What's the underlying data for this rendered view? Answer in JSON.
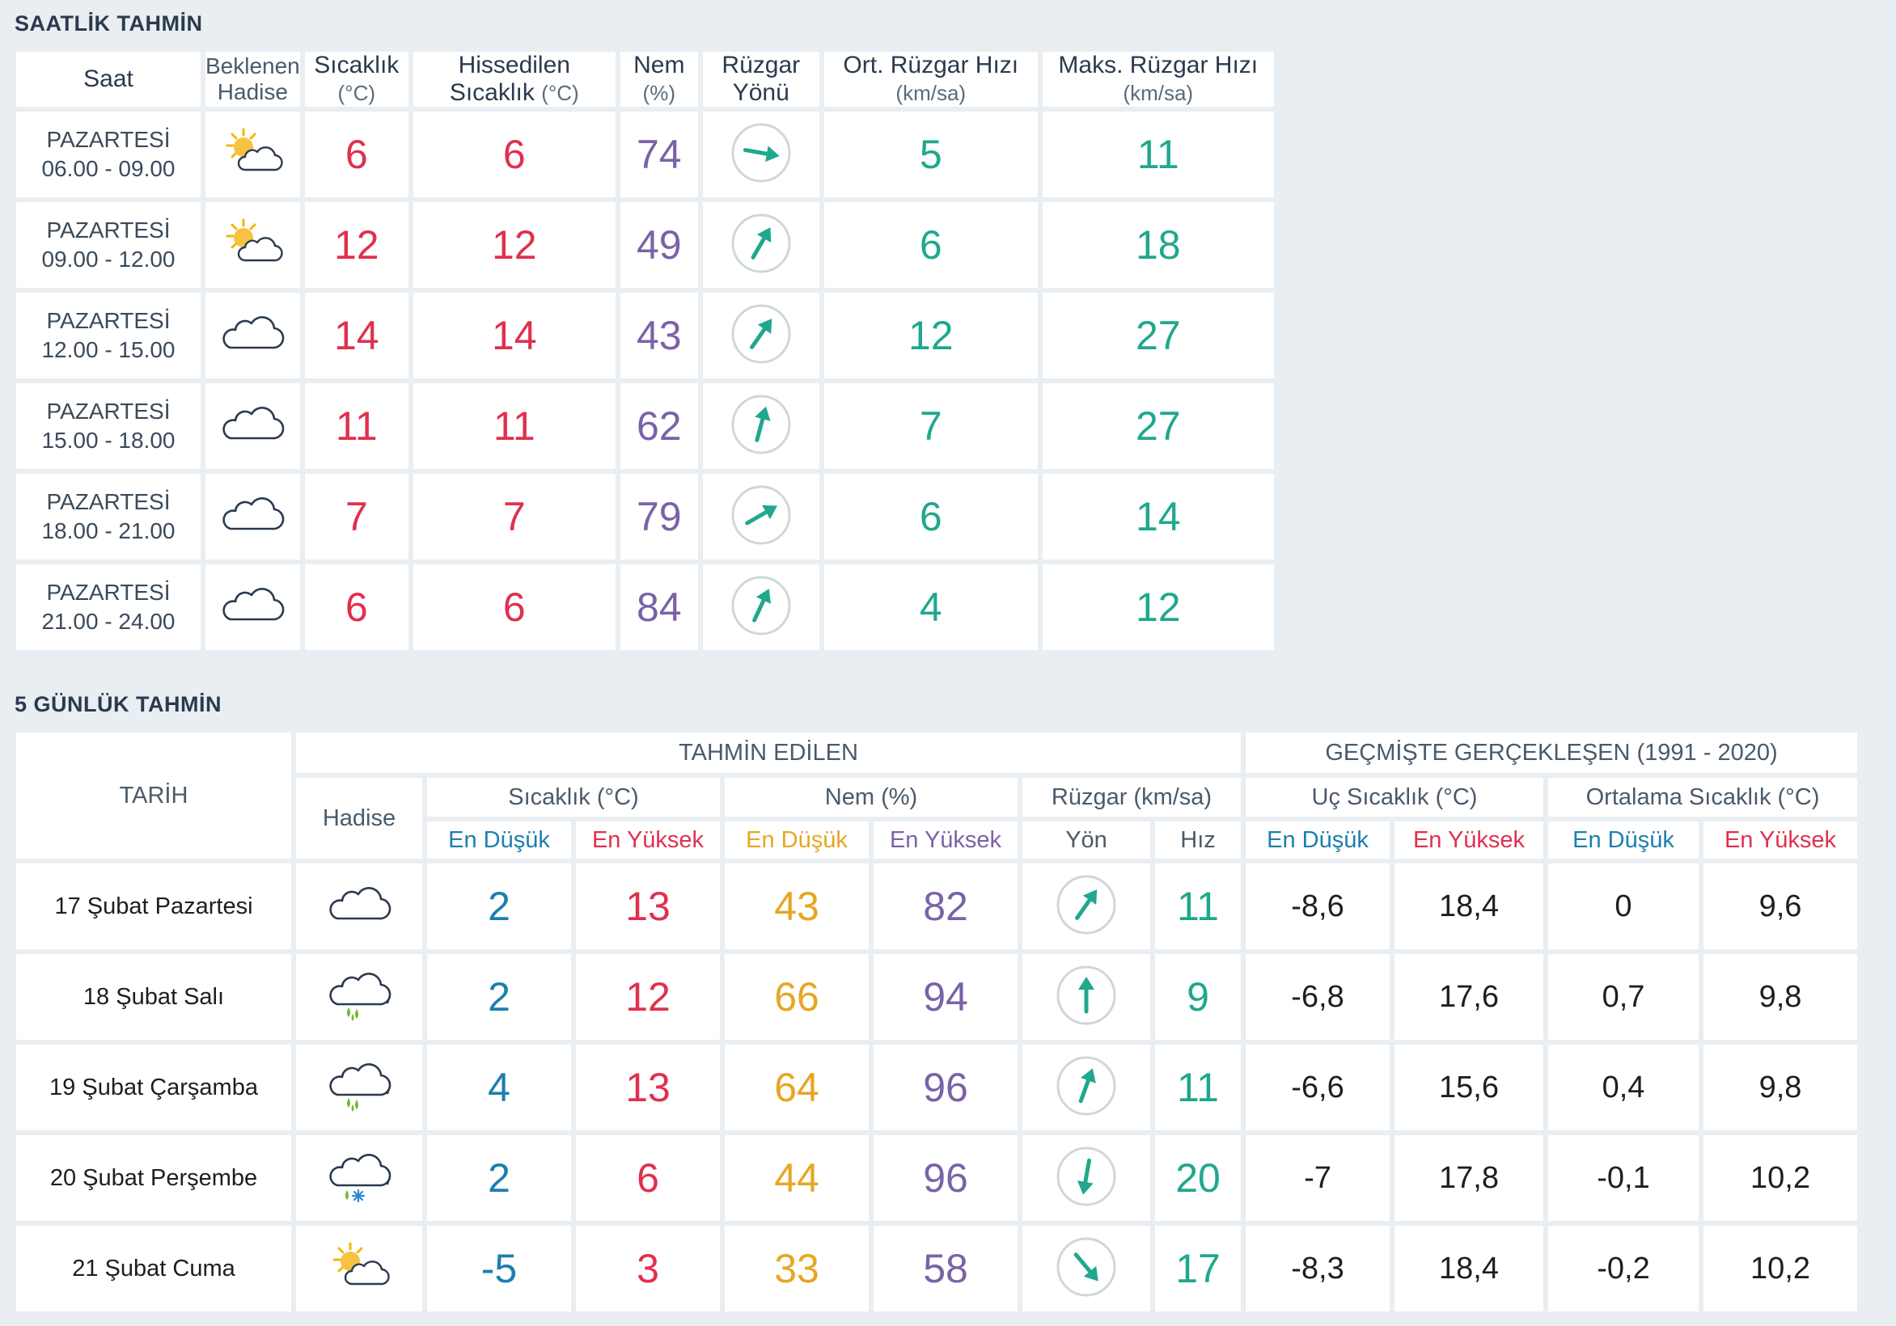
{
  "hourly": {
    "title": "SAATLİK TAHMİN",
    "headers": {
      "time": "Saat",
      "event_line1": "Beklenen",
      "event_line2": "Hadise",
      "temp": "Sıcaklık",
      "temp_unit": "(°C)",
      "feels": "Hissedilen Sıcaklık",
      "feels_unit": "(°C)",
      "humidity": "Nem",
      "humidity_unit": "(%)",
      "wind_dir": "Rüzgar Yönü",
      "avg_wind": "Ort. Rüzgar Hızı",
      "avg_wind_unit": "(km/sa)",
      "max_wind": "Maks. Rüzgar Hızı",
      "max_wind_unit": "(km/sa)"
    },
    "rows": [
      {
        "day": "PAZARTESİ",
        "time": "06.00 - 09.00",
        "icon": "partly-sunny-icon",
        "temp": "6",
        "feels": "6",
        "humidity": "74",
        "wind_deg": 100,
        "avg_wind": "5",
        "max_wind": "11"
      },
      {
        "day": "PAZARTESİ",
        "time": "09.00 - 12.00",
        "icon": "partly-sunny-icon",
        "temp": "12",
        "feels": "12",
        "humidity": "49",
        "wind_deg": 30,
        "avg_wind": "6",
        "max_wind": "18"
      },
      {
        "day": "PAZARTESİ",
        "time": "12.00 - 15.00",
        "icon": "cloud-icon",
        "temp": "14",
        "feels": "14",
        "humidity": "43",
        "wind_deg": 35,
        "avg_wind": "12",
        "max_wind": "27"
      },
      {
        "day": "PAZARTESİ",
        "time": "15.00 - 18.00",
        "icon": "cloud-icon",
        "temp": "11",
        "feels": "11",
        "humidity": "62",
        "wind_deg": 15,
        "avg_wind": "7",
        "max_wind": "27"
      },
      {
        "day": "PAZARTESİ",
        "time": "18.00 - 21.00",
        "icon": "cloud-icon",
        "temp": "7",
        "feels": "7",
        "humidity": "79",
        "wind_deg": 60,
        "avg_wind": "6",
        "max_wind": "14"
      },
      {
        "day": "PAZARTESİ",
        "time": "21.00 - 24.00",
        "icon": "cloud-icon",
        "temp": "6",
        "feels": "6",
        "humidity": "84",
        "wind_deg": 25,
        "avg_wind": "4",
        "max_wind": "12"
      }
    ]
  },
  "daily": {
    "title": "5 GÜNLÜK TAHMİN",
    "headers": {
      "date": "TARİH",
      "forecast": "TAHMİN EDİLEN",
      "history": "GEÇMİŞTE GERÇEKLEŞEN (1991 - 2020)",
      "event": "Hadise",
      "temp": "Sıcaklık (°C)",
      "humidity": "Nem (%)",
      "wind": "Rüzgar (km/sa)",
      "extreme": "Uç Sıcaklık (°C)",
      "average": "Ortalama Sıcaklık (°C)",
      "min": "En Düşük",
      "max": "En Yüksek",
      "direction": "Yön",
      "speed": "Hız"
    },
    "rows": [
      {
        "date": "17 Şubat Pazartesi",
        "icon": "cloud-icon",
        "temp_min": "2",
        "temp_max": "13",
        "hum_min": "43",
        "hum_max": "82",
        "wind_deg": 35,
        "wind_speed": "11",
        "ext_min": "-8,6",
        "ext_max": "18,4",
        "avg_min": "0",
        "avg_max": "9,6"
      },
      {
        "date": "18 Şubat Salı",
        "icon": "rain-icon",
        "temp_min": "2",
        "temp_max": "12",
        "hum_min": "66",
        "hum_max": "94",
        "wind_deg": 0,
        "wind_speed": "9",
        "ext_min": "-6,8",
        "ext_max": "17,6",
        "avg_min": "0,7",
        "avg_max": "9,8"
      },
      {
        "date": "19 Şubat Çarşamba",
        "icon": "rain-icon",
        "temp_min": "4",
        "temp_max": "13",
        "hum_min": "64",
        "hum_max": "96",
        "wind_deg": 20,
        "wind_speed": "11",
        "ext_min": "-6,6",
        "ext_max": "15,6",
        "avg_min": "0,4",
        "avg_max": "9,8"
      },
      {
        "date": "20 Şubat Perşembe",
        "icon": "sleet-icon",
        "temp_min": "2",
        "temp_max": "6",
        "hum_min": "44",
        "hum_max": "96",
        "wind_deg": 190,
        "wind_speed": "20",
        "ext_min": "-7",
        "ext_max": "17,8",
        "avg_min": "-0,1",
        "avg_max": "10,2"
      },
      {
        "date": "21 Şubat Cuma",
        "icon": "partly-sunny-icon",
        "temp_min": "-5",
        "temp_max": "3",
        "hum_min": "33",
        "hum_max": "58",
        "wind_deg": 140,
        "wind_speed": "17",
        "ext_min": "-8,3",
        "ext_max": "18,4",
        "avg_min": "-0,2",
        "avg_max": "10,2"
      }
    ]
  },
  "colors": {
    "temperature": "#e0304e",
    "humidity": "#7a62a8",
    "wind": "#1fa88e",
    "low": "#1c7fae",
    "humidity_low": "#e7a623"
  }
}
